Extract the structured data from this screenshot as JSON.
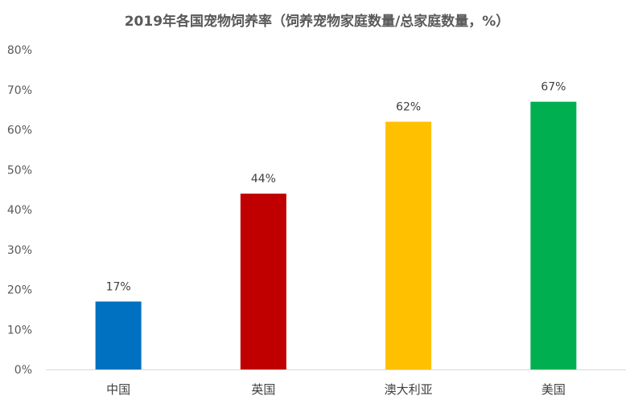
{
  "chart_data": {
    "type": "bar",
    "title": "2019年各国宠物饲养率（饲养宠物家庭数量/总家庭数量，%）",
    "categories": [
      "中国",
      "英国",
      "澳大利亚",
      "美国"
    ],
    "values": [
      17,
      44,
      62,
      67
    ],
    "data_labels": [
      "17%",
      "44%",
      "62%",
      "67%"
    ],
    "bar_colors": [
      "#0070c0",
      "#c00000",
      "#ffc000",
      "#00b050"
    ],
    "ylim": [
      0,
      80
    ],
    "yticks": [
      0,
      10,
      20,
      30,
      40,
      50,
      60,
      70,
      80
    ],
    "ytick_labels": [
      "0%",
      "10%",
      "20%",
      "30%",
      "40%",
      "50%",
      "60%",
      "70%",
      "80%"
    ],
    "xlabel": "",
    "ylabel": "",
    "grid": false,
    "legend": "none"
  }
}
